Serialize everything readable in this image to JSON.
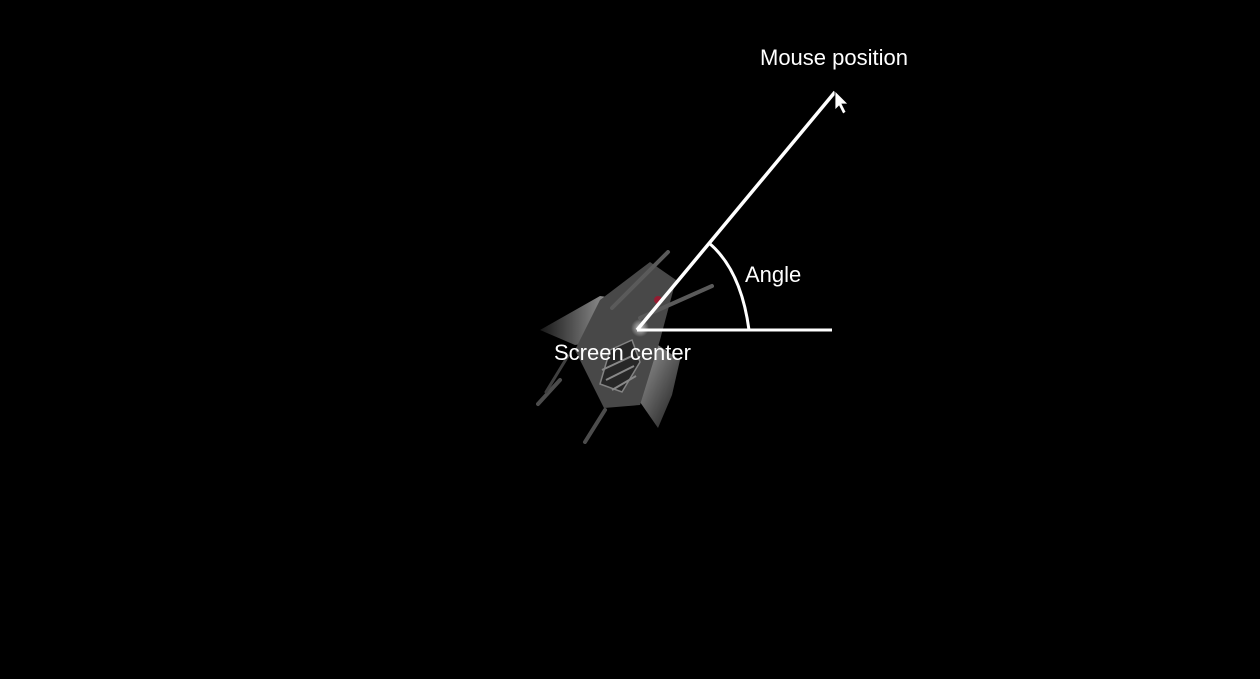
{
  "colors": {
    "background": "#000000",
    "line": "#ffffff",
    "label": "#ffffff",
    "ship_hull": "#8a8a8a",
    "ship_highlight": "#e6e6e6",
    "ship_shadow": "#3a3a3a",
    "ship_accent": "#b0203a"
  },
  "labels": {
    "mouse_position": "Mouse position",
    "angle": "Angle",
    "screen_center": "Screen center"
  },
  "icons": {
    "cursor": "mouse-cursor-icon",
    "ship": "spaceship-sprite"
  }
}
